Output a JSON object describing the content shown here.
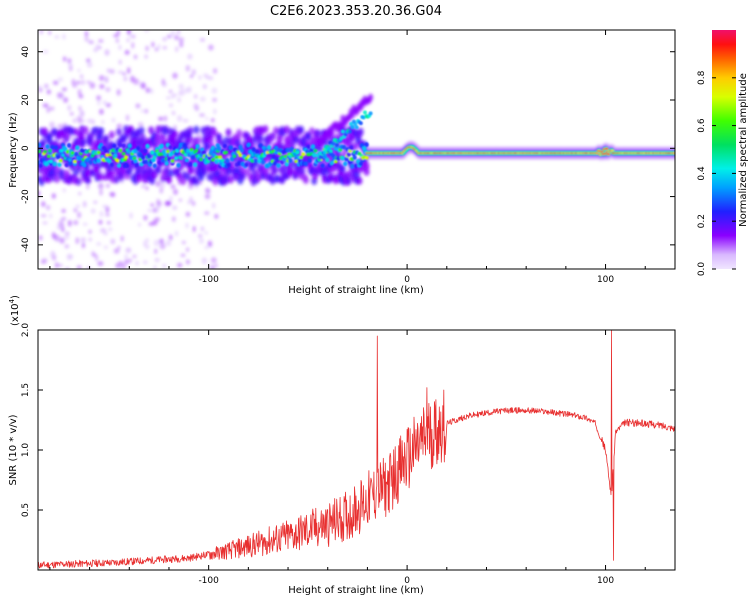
{
  "title": "C2E6.2023.353.20.36.G04",
  "colors": {
    "axes": "#000000",
    "snr_line": "#e83030",
    "background": "#ffffff"
  },
  "chart_data": [
    {
      "type": "heatmap",
      "title": "",
      "xlabel": "Height of straight line (km)",
      "ylabel": "Frequency (Hz)",
      "xlim": [
        -186,
        135
      ],
      "ylim": [
        -50,
        49
      ],
      "xticks": [
        -100,
        0,
        100
      ],
      "yticks": [
        -40,
        -20,
        0,
        20,
        40
      ],
      "xtick_labels": [
        "-100",
        "0",
        "100"
      ],
      "ytick_labels": [
        "-40",
        "-20",
        "0",
        "20",
        "40"
      ],
      "grid": false,
      "colorbar": {
        "label": "Normalized spectral amplitude",
        "range": [
          0,
          1
        ],
        "ticks": [
          0.0,
          0.2,
          0.4,
          0.6,
          0.8
        ],
        "tick_labels": [
          "0.0",
          "0.2",
          "0.4",
          "0.6",
          "0.8"
        ],
        "colormap": "rainbow"
      },
      "features": [
        {
          "x_range": [
            -186,
            -20
          ],
          "center_hz": -3,
          "spread_hz": 10,
          "max_amplitude": 0.7
        },
        {
          "x_range": [
            -45,
            -18
          ],
          "center_hz": 12,
          "spread_hz": 6,
          "max_amplitude": 0.5,
          "note": "rising branch to ~22 Hz"
        },
        {
          "x_range": [
            -20,
            135
          ],
          "center_hz": -2,
          "spread_hz": 2,
          "max_amplitude": 0.9
        }
      ]
    },
    {
      "type": "line",
      "title": "",
      "xlabel": "Height of straight line (km)",
      "ylabel": "SNR (10 * v/v)",
      "y_scale_note": "(x10",
      "y_scale_exp": "4",
      "y_scale_close": ")",
      "xlim": [
        -186,
        135
      ],
      "ylim": [
        0,
        2.0
      ],
      "xticks": [
        -100,
        0,
        100
      ],
      "yticks": [
        0.5,
        1.0,
        1.5,
        2.0
      ],
      "xtick_labels": [
        "-100",
        "0",
        "100"
      ],
      "ytick_labels": [
        "0.5",
        "1.0",
        "1.5",
        "2.0"
      ],
      "grid": false,
      "series": [
        {
          "x": [
            -186,
            -170,
            -150,
            -130,
            -110,
            -100,
            -90,
            -80,
            -70,
            -60,
            -50,
            -40,
            -30,
            -20,
            -15,
            -10,
            -5,
            0,
            5,
            10,
            20,
            30,
            40,
            50,
            60,
            70,
            80,
            90,
            95,
            100,
            103,
            105,
            110,
            120,
            130,
            135
          ],
          "values": [
            0.04,
            0.05,
            0.06,
            0.08,
            0.1,
            0.13,
            0.16,
            0.2,
            0.24,
            0.28,
            0.33,
            0.38,
            0.45,
            0.58,
            0.65,
            0.7,
            0.82,
            0.92,
            1.02,
            1.12,
            1.22,
            1.28,
            1.31,
            1.33,
            1.33,
            1.32,
            1.3,
            1.27,
            1.22,
            1.0,
            0.6,
            1.15,
            1.23,
            1.22,
            1.2,
            1.18
          ]
        }
      ],
      "spikes": [
        {
          "x": -15,
          "y": 1.95
        },
        {
          "x": 10,
          "y": 1.52
        },
        {
          "x": 103,
          "y": 2.0
        },
        {
          "x": 104,
          "y": 0.08
        }
      ]
    }
  ]
}
